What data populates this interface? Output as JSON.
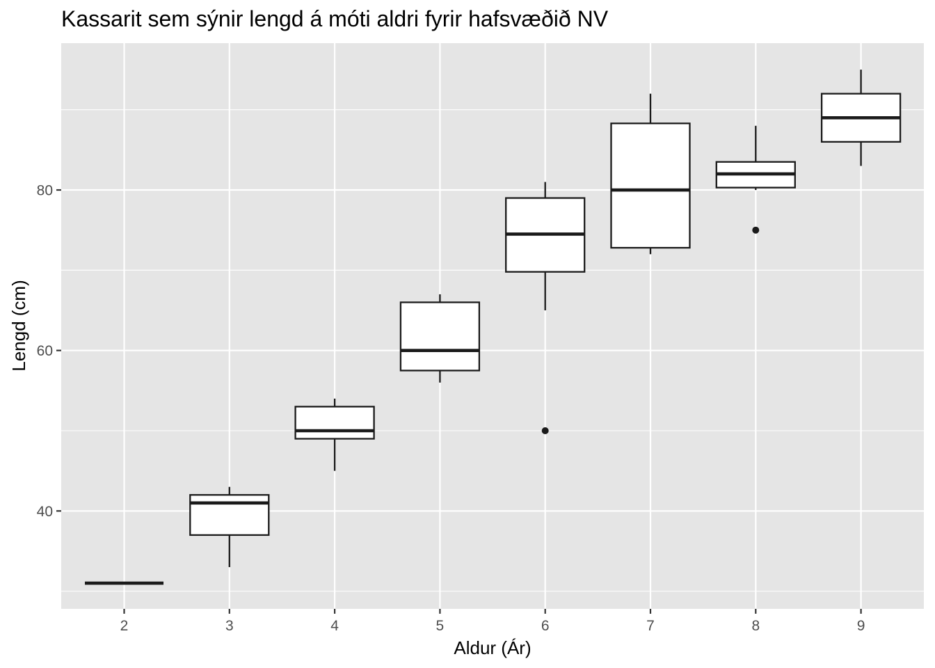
{
  "chart_data": {
    "type": "boxplot",
    "title": "Kassarit sem sýnir lengd á móti aldri fyrir hafsvæðið NV",
    "xlabel": "Aldur (Ár)",
    "ylabel": "Lengd (cm)",
    "categories": [
      "2",
      "3",
      "4",
      "5",
      "6",
      "7",
      "8",
      "9"
    ],
    "y_ticks": [
      40,
      60,
      80
    ],
    "ylim": [
      27.8,
      98.3
    ],
    "grid": true,
    "background": "#e5e5e5",
    "grid_color": "#ffffff",
    "box_fill": "#ffffff",
    "line_color": "#1a1a1a",
    "boxes": [
      {
        "x": "2",
        "min": 31,
        "q1": 31,
        "median": 31,
        "q3": 31,
        "max": 31,
        "outliers": []
      },
      {
        "x": "3",
        "min": 33,
        "q1": 37,
        "median": 41,
        "q3": 42,
        "max": 43,
        "outliers": []
      },
      {
        "x": "4",
        "min": 45,
        "q1": 49,
        "median": 50,
        "q3": 53,
        "max": 54,
        "outliers": []
      },
      {
        "x": "5",
        "min": 56,
        "q1": 57.5,
        "median": 60,
        "q3": 66,
        "max": 67,
        "outliers": []
      },
      {
        "x": "6",
        "min": 65,
        "q1": 69.8,
        "median": 74.5,
        "q3": 79,
        "max": 81,
        "outliers": [
          50
        ]
      },
      {
        "x": "7",
        "min": 72,
        "q1": 72.8,
        "median": 80,
        "q3": 88.3,
        "max": 92,
        "outliers": []
      },
      {
        "x": "8",
        "min": 80,
        "q1": 80.3,
        "median": 82,
        "q3": 83.5,
        "max": 88,
        "outliers": [
          75
        ]
      },
      {
        "x": "9",
        "min": 83,
        "q1": 86,
        "median": 89,
        "q3": 92,
        "max": 95,
        "outliers": []
      }
    ]
  }
}
